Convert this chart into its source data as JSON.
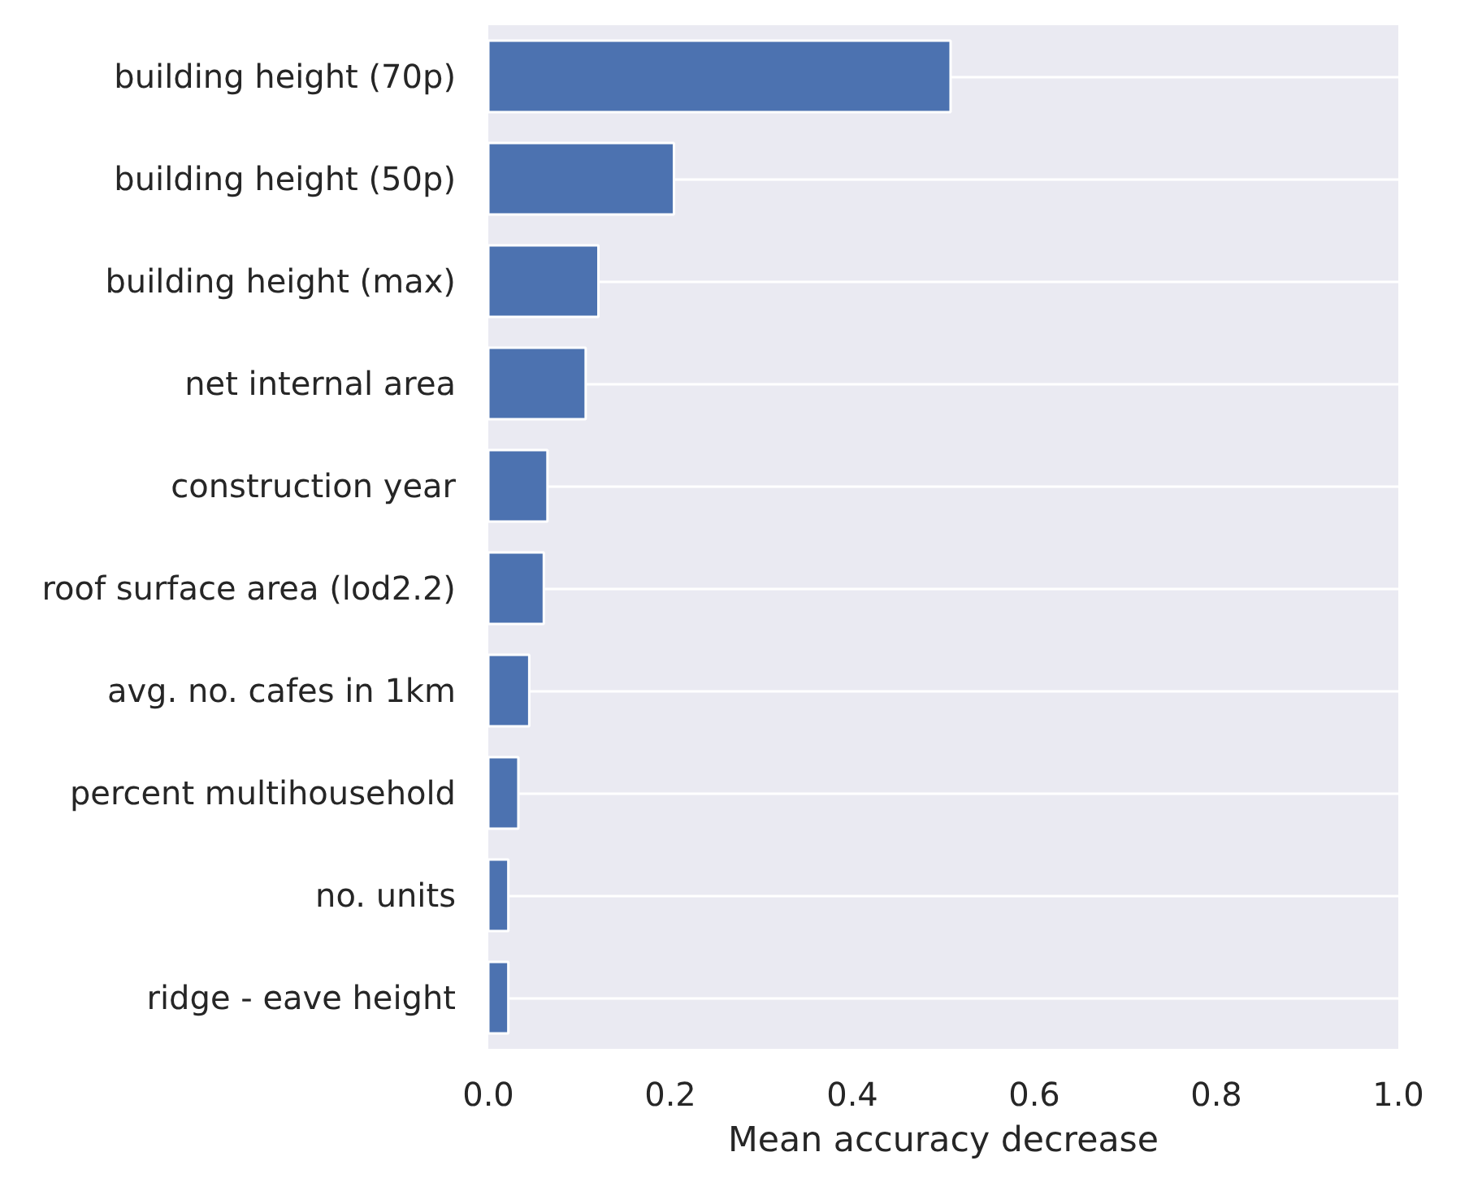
{
  "chart_data": {
    "type": "bar",
    "orientation": "horizontal",
    "xlabel": "Mean accuracy decrease",
    "categories": [
      "building height (70p)",
      "building height (50p)",
      "building height (max)",
      "net internal area",
      "construction year",
      "roof surface area (lod2.2)",
      "avg. no. cafes in 1km",
      "percent multihousehold",
      "no. units",
      "ridge - eave height"
    ],
    "values": [
      0.508,
      0.204,
      0.121,
      0.107,
      0.065,
      0.061,
      0.045,
      0.033,
      0.022,
      0.022
    ],
    "color": "#4c72b0",
    "xlim": [
      0,
      1
    ],
    "xticks": [
      {
        "value": 0,
        "label": "0.0"
      },
      0.2,
      0.4,
      0.6,
      0.8,
      {
        "value": 1,
        "label": "1.0"
      }
    ],
    "grid": "y"
  }
}
